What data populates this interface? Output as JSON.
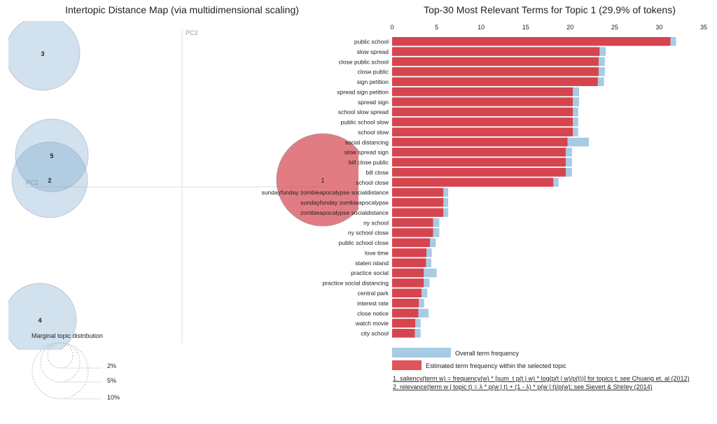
{
  "chart_data": [
    {
      "type": "scatter",
      "title": "Intertopic Distance Map (via multidimensional scaling)",
      "xlabel": "PC1",
      "ylabel": "PC2",
      "topics": [
        {
          "id": "1",
          "selected": true
        },
        {
          "id": "2",
          "selected": false
        },
        {
          "id": "3",
          "selected": false
        },
        {
          "id": "4",
          "selected": false
        },
        {
          "id": "5",
          "selected": false
        }
      ],
      "legend": {
        "title": "Marginal topic distribution",
        "sizes": [
          "2%",
          "5%",
          "10%"
        ]
      }
    },
    {
      "type": "bar",
      "title": "Top-30 Most Relevant Terms for Topic 1 (29.9% of tokens)",
      "xlim": [
        0,
        35
      ],
      "xticks": [
        "0",
        "5",
        "10",
        "15",
        "20",
        "25",
        "30",
        "35"
      ],
      "categories": [
        "public school",
        "slow spread",
        "close public school",
        "close public",
        "sign petition",
        "spread sign petition",
        "spread sign",
        "school slow spread",
        "public school slow",
        "school slow",
        "social distancing",
        "slow spread sign",
        "bill close public",
        "bill close",
        "school close",
        "sundayfunday zombieapocalypse socialdistance",
        "sundayfunday zombieapocalypse",
        "zombieapocalypse socialdistance",
        "ny school",
        "ny school close",
        "public school close",
        "love time",
        "staten island",
        "practice social",
        "practice social distancing",
        "central park",
        "interest rate",
        "close notice",
        "watch movie",
        "city school"
      ],
      "series": [
        {
          "name": "Overall term frequency",
          "color": "#a6cbe3",
          "values": [
            31.9,
            24.0,
            23.9,
            23.9,
            23.8,
            21.0,
            21.0,
            20.9,
            20.9,
            20.9,
            22.1,
            20.2,
            20.2,
            20.2,
            18.7,
            6.3,
            6.3,
            6.3,
            5.3,
            5.3,
            4.9,
            4.45,
            4.4,
            5.0,
            4.2,
            3.95,
            3.6,
            4.1,
            3.2,
            3.2
          ]
        },
        {
          "name": "Estimated term frequency within the selected topic",
          "color": "#d6444e",
          "values": [
            31.26,
            23.3,
            23.2,
            23.2,
            23.1,
            20.3,
            20.3,
            20.3,
            20.3,
            20.3,
            19.7,
            19.5,
            19.5,
            19.5,
            18.1,
            5.75,
            5.75,
            5.75,
            4.6,
            4.6,
            4.25,
            3.85,
            3.8,
            3.55,
            3.55,
            3.3,
            3.0,
            2.95,
            2.6,
            2.55
          ]
        }
      ],
      "footnotes": [
        "1. saliency(term w) = frequency(w) * [sum_t p(t | w) * log(p(t | w)/p(t))] for topics t; see Chuang et. al (2012)",
        "2. relevance(term w | topic t) = λ * p(w | t) + (1 - λ) * p(w | t)/p(w); see Sievert & Shirley (2014)"
      ]
    }
  ]
}
